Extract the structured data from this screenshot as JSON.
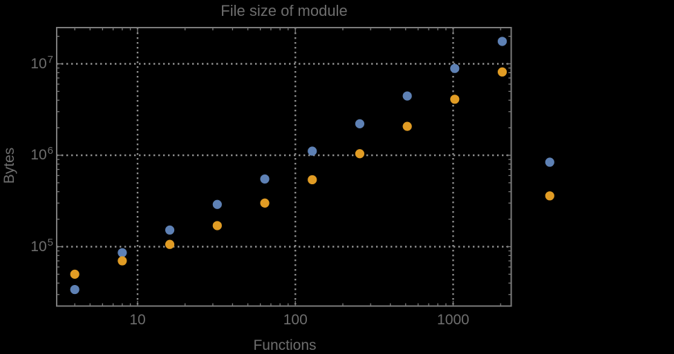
{
  "chart_data": {
    "type": "scatter",
    "title": "File size of module",
    "xlabel": "Functions",
    "ylabel": "Bytes",
    "x_scale": "log",
    "y_scale": "log",
    "grid": "dotted",
    "legend": "none",
    "x_range": [
      3.1,
      2330
    ],
    "y_range": [
      22000,
      24500000
    ],
    "x_ticks": [
      {
        "value": 10,
        "label": "10"
      },
      {
        "value": 100,
        "label": "100"
      },
      {
        "value": 1000,
        "label": "1000"
      }
    ],
    "y_ticks": [
      {
        "value": 100000,
        "base": "10",
        "exp": "5"
      },
      {
        "value": 1000000,
        "base": "10",
        "exp": "6"
      },
      {
        "value": 10000000,
        "base": "10",
        "exp": "7"
      }
    ],
    "x": [
      4,
      8,
      16,
      32,
      64,
      128,
      256,
      512,
      1024,
      2048,
      4096
    ],
    "series": [
      {
        "name": "blue-series",
        "color": "#5E81B5",
        "values": [
          34000,
          86000,
          152000,
          290000,
          550000,
          1110000,
          2210000,
          4450000,
          8900000,
          17600000,
          840000
        ]
      },
      {
        "name": "orange-series",
        "color": "#E19C24",
        "values": [
          50000,
          70000,
          106000,
          170000,
          300000,
          540000,
          1040000,
          2070000,
          4100000,
          8150000,
          360000
        ]
      }
    ]
  },
  "colors": {
    "background": "#000000",
    "frame": "#7d7d7d",
    "gridline": "#8f8f8f",
    "text": "#6e6e6e"
  }
}
